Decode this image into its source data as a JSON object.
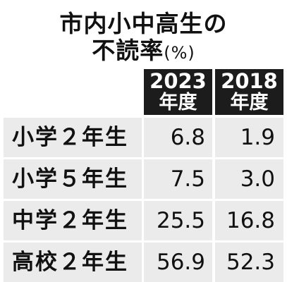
{
  "title": {
    "line1": "市内小中高生の",
    "line2": "不読率",
    "unit": "(%)"
  },
  "chart_data": {
    "type": "table",
    "title": "市内小中高生の不読率(%)",
    "columns": [
      {
        "year": "2023",
        "unit": "年度"
      },
      {
        "year": "2018",
        "unit": "年度"
      }
    ],
    "rows": [
      {
        "label": "小学２年生",
        "values": [
          "6.8",
          "1.9"
        ]
      },
      {
        "label": "小学５年生",
        "values": [
          "7.5",
          "3.0"
        ]
      },
      {
        "label": "中学２年生",
        "values": [
          "25.5",
          "16.8"
        ]
      },
      {
        "label": "高校２年生",
        "values": [
          "56.9",
          "52.3"
        ]
      }
    ]
  }
}
